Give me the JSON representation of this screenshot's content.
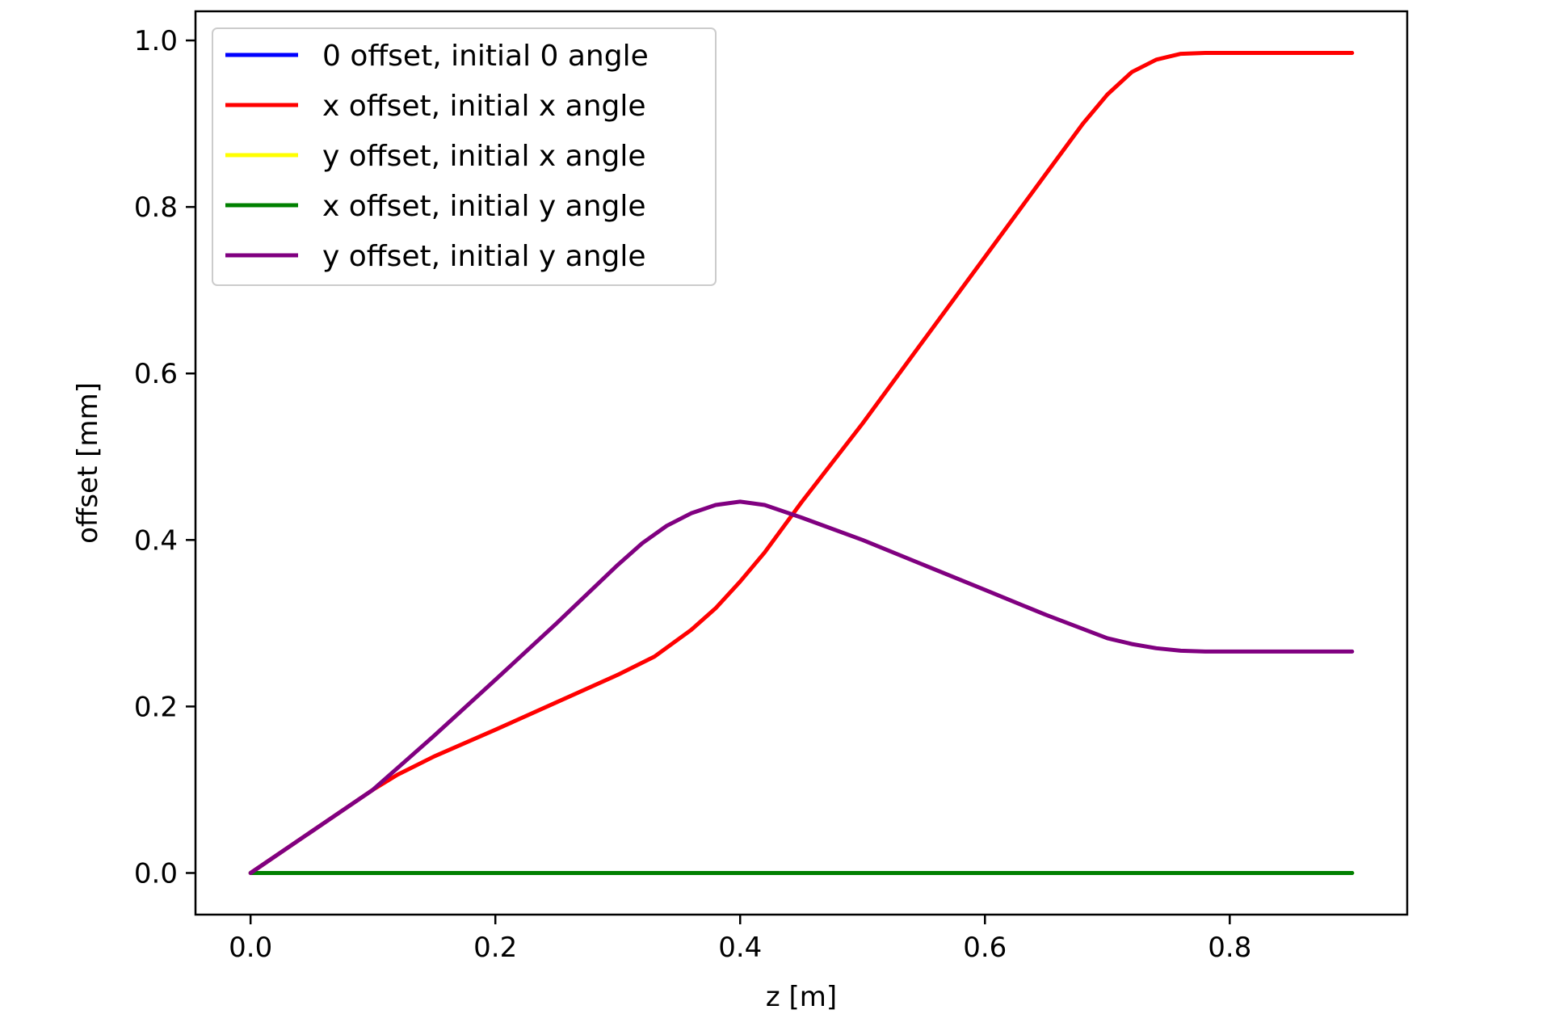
{
  "chart_data": {
    "type": "line",
    "title": "",
    "xlabel": "z [m]",
    "ylabel": "offset [mm]",
    "xlim": [
      -0.045,
      0.945
    ],
    "ylim": [
      -0.05,
      1.035
    ],
    "xticks": [
      0.0,
      0.2,
      0.4,
      0.6,
      0.8
    ],
    "xtick_labels": [
      "0.0",
      "0.2",
      "0.4",
      "0.6",
      "0.8"
    ],
    "yticks": [
      0.0,
      0.2,
      0.4,
      0.6,
      0.8,
      1.0
    ],
    "ytick_labels": [
      "0.0",
      "0.2",
      "0.4",
      "0.6",
      "0.8",
      "1.0"
    ],
    "grid": false,
    "legend_position": "top-left",
    "series": [
      {
        "name": "0 offset, initial 0 angle",
        "color": "#0000ff",
        "x": [
          0.0,
          0.9
        ],
        "y": [
          0.0,
          0.0
        ]
      },
      {
        "name": "x offset, initial x angle",
        "color": "#ff0000",
        "x": [
          0.0,
          0.05,
          0.1,
          0.12,
          0.15,
          0.2,
          0.25,
          0.3,
          0.33,
          0.36,
          0.38,
          0.4,
          0.42,
          0.45,
          0.5,
          0.55,
          0.6,
          0.65,
          0.68,
          0.7,
          0.72,
          0.74,
          0.76,
          0.78,
          0.8,
          0.85,
          0.9
        ],
        "y": [
          0.0,
          0.05,
          0.1,
          0.118,
          0.14,
          0.172,
          0.205,
          0.238,
          0.26,
          0.292,
          0.318,
          0.35,
          0.385,
          0.445,
          0.54,
          0.64,
          0.74,
          0.84,
          0.9,
          0.935,
          0.962,
          0.977,
          0.984,
          0.985,
          0.985,
          0.985,
          0.985
        ]
      },
      {
        "name": "y offset, initial x angle",
        "color": "#ffff00",
        "x": [
          0.0,
          0.9
        ],
        "y": [
          0.0,
          0.0
        ]
      },
      {
        "name": "x offset, initial y angle",
        "color": "#008000",
        "x": [
          0.0,
          0.9
        ],
        "y": [
          0.0,
          0.0
        ]
      },
      {
        "name": "y offset, initial y angle",
        "color": "#800080",
        "x": [
          0.0,
          0.05,
          0.1,
          0.15,
          0.2,
          0.25,
          0.3,
          0.32,
          0.34,
          0.36,
          0.38,
          0.4,
          0.42,
          0.45,
          0.5,
          0.55,
          0.6,
          0.65,
          0.7,
          0.72,
          0.74,
          0.76,
          0.78,
          0.8,
          0.85,
          0.9
        ],
        "y": [
          0.0,
          0.05,
          0.1,
          0.165,
          0.232,
          0.3,
          0.37,
          0.396,
          0.417,
          0.432,
          0.442,
          0.446,
          0.442,
          0.427,
          0.4,
          0.37,
          0.34,
          0.31,
          0.282,
          0.275,
          0.27,
          0.267,
          0.266,
          0.266,
          0.266,
          0.266
        ]
      }
    ]
  }
}
